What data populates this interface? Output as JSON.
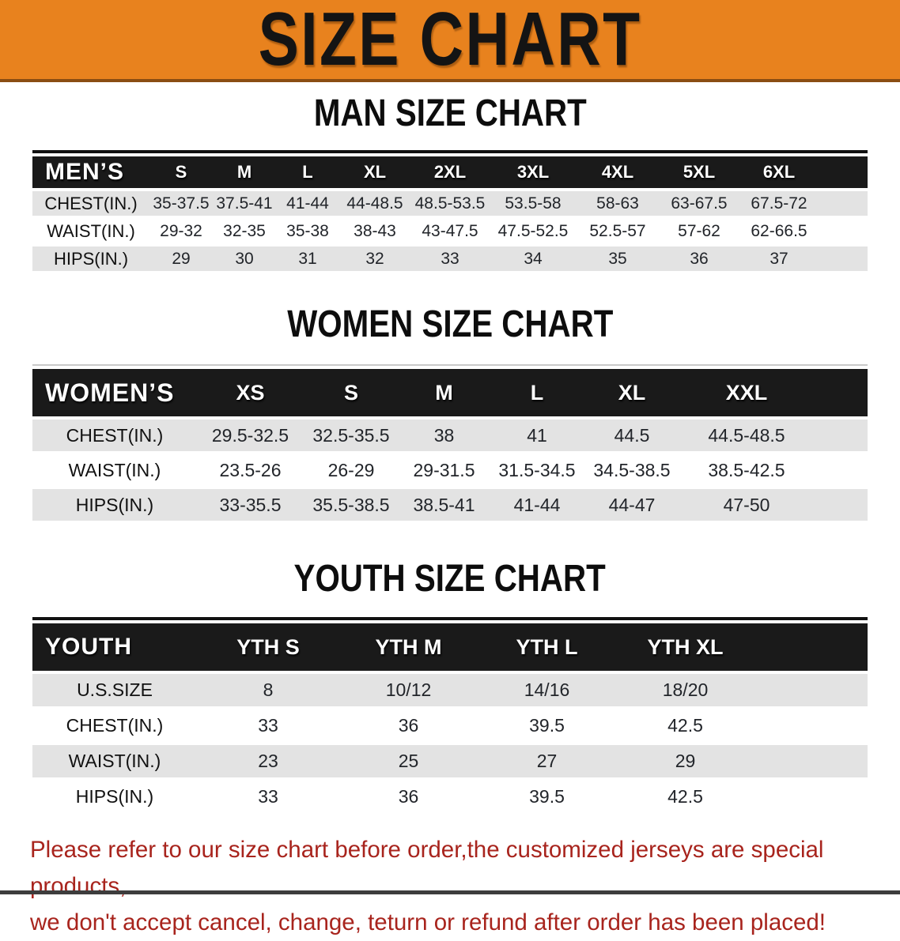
{
  "banner": {
    "title": "SIZE CHART"
  },
  "colors": {
    "banner_orange": "#E8821E",
    "header_bar_black": "#1A1A1A",
    "row_gray": "#E3E3E3",
    "footer_red": "#A8241D"
  },
  "tables": {
    "men": {
      "heading": "MAN SIZE CHART",
      "header": [
        "MEN’S",
        "S",
        "M",
        "L",
        "XL",
        "2XL",
        "3XL",
        "4XL",
        "5XL",
        "6XL"
      ],
      "rows": [
        {
          "label": "CHEST(IN.)",
          "values": [
            "35-37.5",
            "37.5-41",
            "41-44",
            "44-48.5",
            "48.5-53.5",
            "53.5-58",
            "58-63",
            "63-67.5",
            "67.5-72"
          ]
        },
        {
          "label": "WAIST(IN.)",
          "values": [
            "29-32",
            "32-35",
            "35-38",
            "38-43",
            "43-47.5",
            "47.5-52.5",
            "52.5-57",
            "57-62",
            "62-66.5"
          ]
        },
        {
          "label": "HIPS(IN.)",
          "values": [
            "29",
            "30",
            "31",
            "32",
            "33",
            "34",
            "35",
            "36",
            "37"
          ]
        }
      ]
    },
    "women": {
      "heading": "WOMEN SIZE CHART",
      "header": [
        "WOMEN’S",
        "XS",
        "S",
        "M",
        "L",
        "XL",
        "XXL"
      ],
      "rows": [
        {
          "label": "CHEST(IN.)",
          "values": [
            "29.5-32.5",
            "32.5-35.5",
            "38",
            "41",
            "44.5",
            "44.5-48.5"
          ]
        },
        {
          "label": "WAIST(IN.)",
          "values": [
            "23.5-26",
            "26-29",
            "29-31.5",
            "31.5-34.5",
            "34.5-38.5",
            "38.5-42.5"
          ]
        },
        {
          "label": "HIPS(IN.)",
          "values": [
            "33-35.5",
            "35.5-38.5",
            "38.5-41",
            "41-44",
            "44-47",
            "47-50"
          ]
        }
      ]
    },
    "youth": {
      "heading": "YOUTH SIZE CHART",
      "header": [
        "YOUTH",
        "YTH S",
        "YTH M",
        "YTH L",
        "YTH XL"
      ],
      "rows": [
        {
          "label": "U.S.SIZE",
          "values": [
            "8",
            "10/12",
            "14/16",
            "18/20"
          ]
        },
        {
          "label": "CHEST(IN.)",
          "values": [
            "33",
            "36",
            "39.5",
            "42.5"
          ]
        },
        {
          "label": "WAIST(IN.)",
          "values": [
            "23",
            "25",
            "27",
            "29"
          ]
        },
        {
          "label": "HIPS(IN.)",
          "values": [
            "33",
            "36",
            "39.5",
            "42.5"
          ]
        }
      ]
    }
  },
  "footer": {
    "line1": "Please refer to our size chart before order,the customized jerseys are special products,",
    "line2": "we don't accept cancel, change, teturn or refund after order has been placed!"
  }
}
